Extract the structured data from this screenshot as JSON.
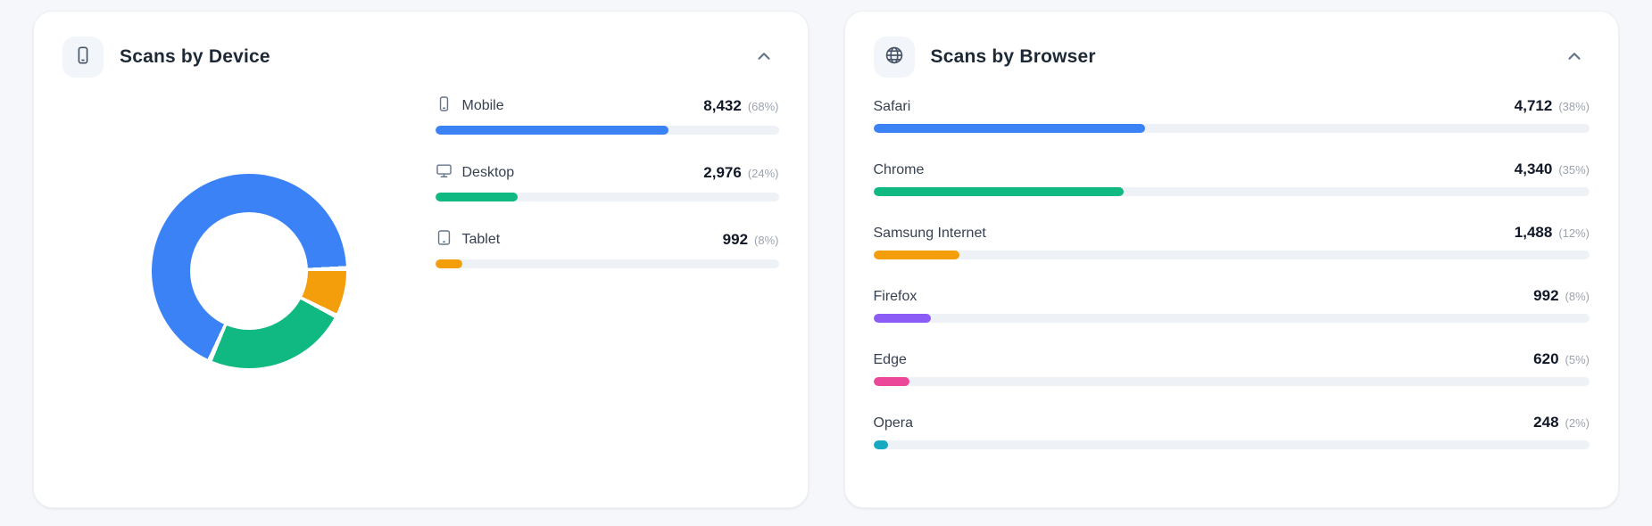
{
  "device_card": {
    "title": "Scans by Device",
    "items": [
      {
        "label": "Mobile",
        "value": "8,432",
        "pct_label": "(68%)",
        "pct": 68,
        "color": "#3b82f6"
      },
      {
        "label": "Desktop",
        "value": "2,976",
        "pct_label": "(24%)",
        "pct": 24,
        "color": "#10b981"
      },
      {
        "label": "Tablet",
        "value": "992",
        "pct_label": "(8%)",
        "pct": 8,
        "color": "#f59e0b"
      }
    ]
  },
  "browser_card": {
    "title": "Scans by Browser",
    "items": [
      {
        "label": "Safari",
        "value": "4,712",
        "pct_label": "(38%)",
        "pct": 38,
        "color": "#3b82f6"
      },
      {
        "label": "Chrome",
        "value": "4,340",
        "pct_label": "(35%)",
        "pct": 35,
        "color": "#10b981"
      },
      {
        "label": "Samsung Internet",
        "value": "1,488",
        "pct_label": "(12%)",
        "pct": 12,
        "color": "#f59e0b"
      },
      {
        "label": "Firefox",
        "value": "992",
        "pct_label": "(8%)",
        "pct": 8,
        "color": "#8b5cf6"
      },
      {
        "label": "Edge",
        "value": "620",
        "pct_label": "(5%)",
        "pct": 5,
        "color": "#ec4899"
      },
      {
        "label": "Opera",
        "value": "248",
        "pct_label": "(2%)",
        "pct": 2,
        "color": "#17a8c2"
      }
    ]
  },
  "chart_data": [
    {
      "type": "pie",
      "title": "Scans by Device",
      "donut": true,
      "start_deg": 90,
      "gap_deg": 3,
      "slices_clockwise": [
        {
          "label": "Tablet",
          "value": 992,
          "pct": 8,
          "color": "#f59e0b"
        },
        {
          "label": "Desktop",
          "value": 2976,
          "pct": 24,
          "color": "#10b981"
        },
        {
          "label": "Mobile",
          "value": 8432,
          "pct": 68,
          "color": "#3b82f6"
        }
      ]
    },
    {
      "type": "bar",
      "title": "Scans by Browser",
      "categories": [
        "Safari",
        "Chrome",
        "Samsung Internet",
        "Firefox",
        "Edge",
        "Opera"
      ],
      "values": [
        4712,
        4340,
        1488,
        992,
        620,
        248
      ],
      "pcts": [
        38,
        35,
        12,
        8,
        5,
        2
      ],
      "colors": [
        "#3b82f6",
        "#10b981",
        "#f59e0b",
        "#8b5cf6",
        "#ec4899",
        "#17a8c2"
      ],
      "legend_position": "none",
      "grid": false
    }
  ]
}
